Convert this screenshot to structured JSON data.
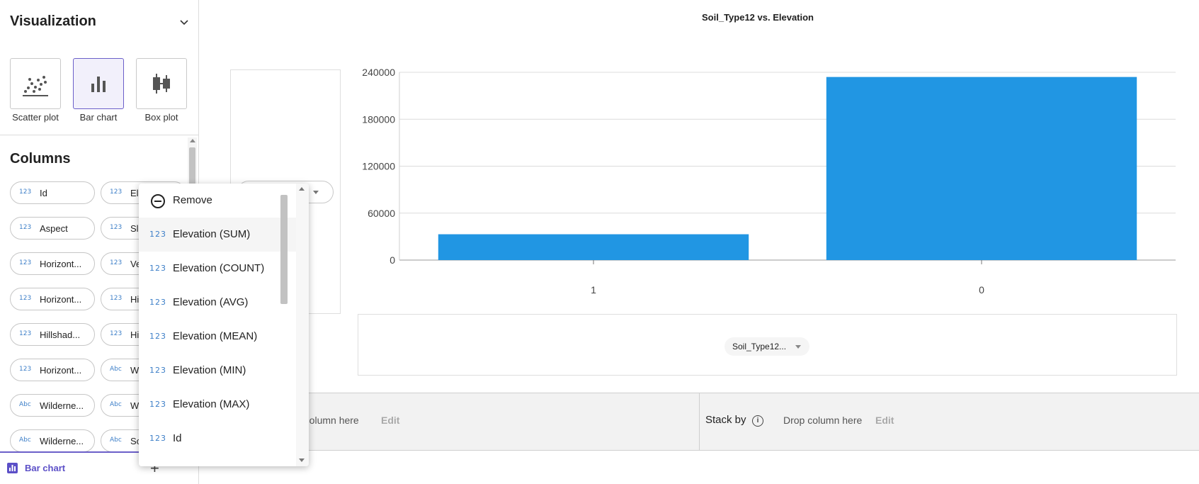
{
  "visualization": {
    "title": "Visualization",
    "options": [
      {
        "label": "Scatter plot",
        "icon": "scatter-plot-icon",
        "selected": false
      },
      {
        "label": "Bar chart",
        "icon": "bar-chart-icon",
        "selected": true
      },
      {
        "label": "Box plot",
        "icon": "box-plot-icon",
        "selected": false
      }
    ]
  },
  "columns": {
    "title": "Columns",
    "items": [
      {
        "type": "123",
        "name": "Id"
      },
      {
        "type": "123",
        "name": "Elevation"
      },
      {
        "type": "123",
        "name": "Aspect"
      },
      {
        "type": "123",
        "name": "Slope"
      },
      {
        "type": "123",
        "name": "Horizont..."
      },
      {
        "type": "123",
        "name": "Ve"
      },
      {
        "type": "123",
        "name": "Horizont..."
      },
      {
        "type": "123",
        "name": "Hi"
      },
      {
        "type": "123",
        "name": "Hillshad..."
      },
      {
        "type": "123",
        "name": "Hi"
      },
      {
        "type": "123",
        "name": "Horizont..."
      },
      {
        "type": "Abc",
        "name": "W"
      },
      {
        "type": "Abc",
        "name": "Wilderne..."
      },
      {
        "type": "Abc",
        "name": "W"
      },
      {
        "type": "Abc",
        "name": "Wilderne..."
      },
      {
        "type": "Abc",
        "name": "So"
      }
    ]
  },
  "footer_tab": {
    "label": "Bar chart"
  },
  "chart": {
    "title": "Soil_Type12 vs. Elevation",
    "xaxis_select": "Soil_Type12...",
    "bar_color": "#2196e3"
  },
  "chart_data": {
    "type": "bar",
    "title": "Soil_Type12 vs. Elevation",
    "categories": [
      "1",
      "0"
    ],
    "values": [
      33000,
      234000
    ],
    "yticks": [
      "240000",
      "180000",
      "120000",
      "60000",
      "0"
    ],
    "ylim": [
      0,
      240000
    ],
    "grid": true
  },
  "dropbar": {
    "left_drop_text": "p column here",
    "left_edit": "Edit",
    "stack_label": "Stack by",
    "stack_info": "i",
    "stack_drop_text": "Drop column here",
    "stack_edit": "Edit"
  },
  "bottom": {
    "plus": "+"
  },
  "dropdown": {
    "remove_label": "Remove",
    "items": [
      {
        "type": "123",
        "label": "Elevation (SUM)"
      },
      {
        "type": "123",
        "label": "Elevation (COUNT)"
      },
      {
        "type": "123",
        "label": "Elevation (AVG)"
      },
      {
        "type": "123",
        "label": "Elevation (MEAN)"
      },
      {
        "type": "123",
        "label": "Elevation (MIN)"
      },
      {
        "type": "123",
        "label": "Elevation (MAX)"
      },
      {
        "type": "123",
        "label": "Id"
      }
    ]
  }
}
